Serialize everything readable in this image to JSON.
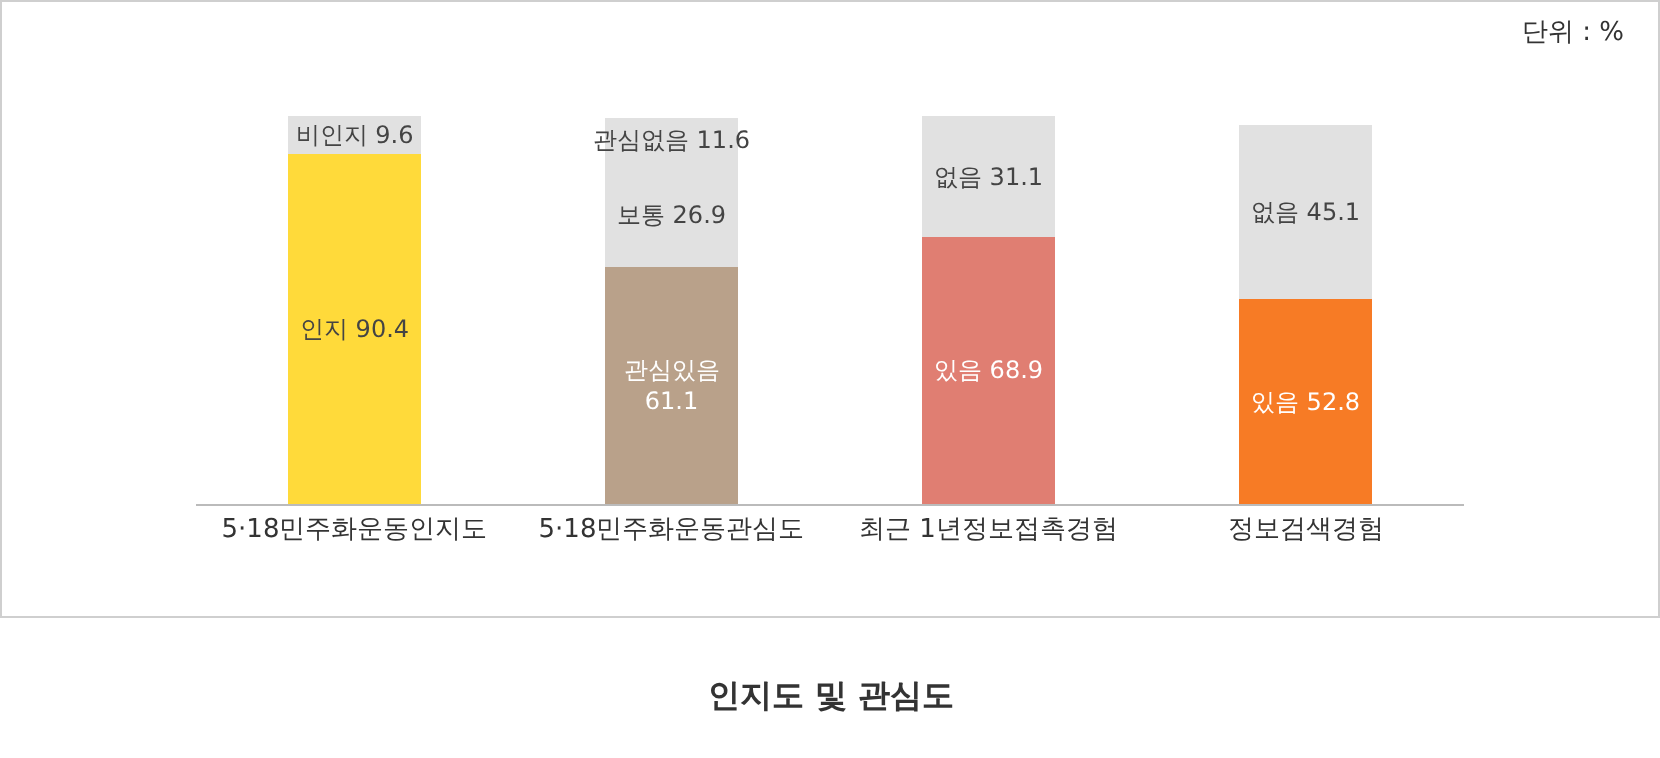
{
  "chart_data": {
    "type": "bar",
    "title": "인지도 및 관심도",
    "stacked": true,
    "tick_labels": "x",
    "grid": false,
    "categories": [
      "5·18민주화운동인지도",
      "5·18민주화운동관심도",
      "최근 1년정보접촉경험",
      "정보검색경험"
    ],
    "series": [
      {
        "colors": [
          "#ffda3a",
          "#b9a18a",
          "#e07e72",
          "#f77b25"
        ],
        "values": [
          90.4,
          61.1,
          68.9,
          52.8
        ],
        "value_labels": [
          "인지 90.4",
          "관심있음\n61.1",
          "있음 68.9",
          "있음 52.8"
        ]
      },
      {
        "color": "#e1e1e1",
        "values": [
          9.6,
          26.9,
          31.1,
          45.1
        ],
        "value_labels": [
          "비인지 9.6",
          "보통 26.9",
          "없음 31.1",
          "없음 45.1"
        ]
      },
      {
        "color": "#e1e1e1",
        "values": [
          null,
          11.6,
          null,
          null
        ],
        "value_labels": [
          null,
          "관심없음 11.6",
          null,
          null
        ]
      }
    ],
    "annotations": [
      "단위 : %"
    ]
  }
}
